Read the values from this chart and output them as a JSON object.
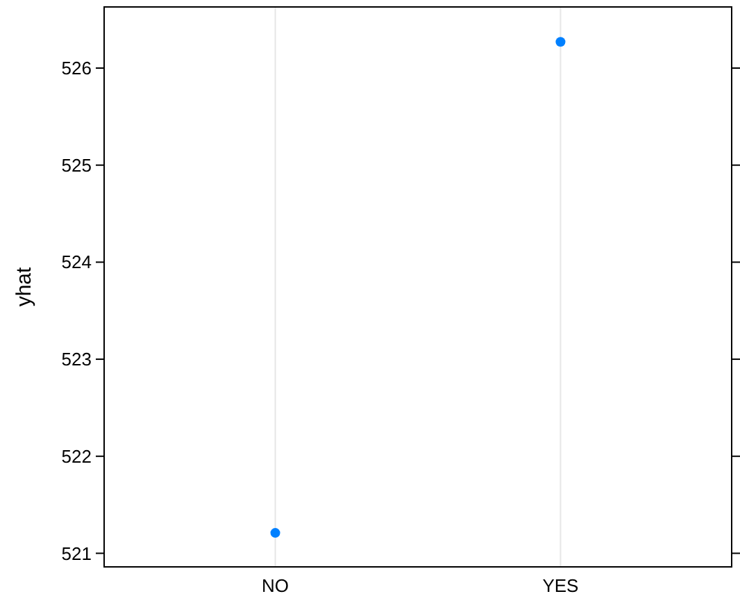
{
  "chart_data": {
    "type": "scatter",
    "ylabel": "yhat",
    "categories": [
      "NO",
      "YES"
    ],
    "series": [
      {
        "color": "#0080ff",
        "values": [
          521.21,
          526.27
        ]
      }
    ],
    "ylim": [
      520.86,
      526.63
    ],
    "yticks": [
      521,
      522,
      523,
      524,
      525,
      526
    ],
    "grid": "x",
    "marker": "circle"
  }
}
